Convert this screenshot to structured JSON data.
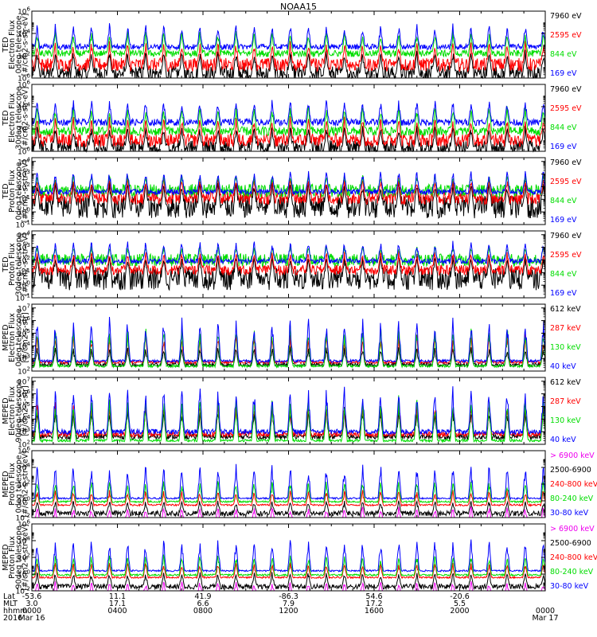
{
  "figure": {
    "title": "NOAA15"
  },
  "chart_data": [
    {
      "type": "line",
      "ylabel": [
        "TED",
        "Electron Flux",
        "0deg telescope",
        "[#/cm2-s-str-eV]"
      ],
      "yticks": [
        "10^0",
        "10^2",
        "10^4",
        "10^6"
      ],
      "ylim_exp": [
        0,
        6
      ],
      "log_y": true,
      "series": [
        {
          "name": "7960 eV",
          "color": "#000000",
          "base": 0.4,
          "jitter": 0.7,
          "spike": 2.6
        },
        {
          "name": "2595 eV",
          "color": "#ff0000",
          "base": 1.2,
          "jitter": 0.6,
          "spike": 3.4
        },
        {
          "name": "844 eV",
          "color": "#00dd00",
          "base": 2.2,
          "jitter": 0.3,
          "spike": 4.4
        },
        {
          "name": "169 eV",
          "color": "#0000ff",
          "base": 2.8,
          "jitter": 0.25,
          "spike": 5.0
        }
      ]
    },
    {
      "type": "line",
      "ylabel": [
        "TED",
        "Electron Flux",
        "30deg telescope",
        "[#/cm2-s-str-eV]"
      ],
      "yticks": [
        "10^0",
        "10^2",
        "10^4",
        "10^6"
      ],
      "ylim_exp": [
        0,
        6
      ],
      "log_y": true,
      "series": [
        {
          "name": "7960 eV",
          "color": "#000000",
          "base": 0.3,
          "jitter": 0.7,
          "spike": 2.4
        },
        {
          "name": "2595 eV",
          "color": "#ff0000",
          "base": 1.0,
          "jitter": 0.6,
          "spike": 3.2
        },
        {
          "name": "844 eV",
          "color": "#00dd00",
          "base": 1.8,
          "jitter": 0.4,
          "spike": 4.2
        },
        {
          "name": "169 eV",
          "color": "#0000ff",
          "base": 2.6,
          "jitter": 0.3,
          "spike": 4.8
        }
      ]
    },
    {
      "type": "line",
      "ylabel": [
        "TED",
        "Proton Flux",
        "0deg telescope",
        "[#/cm2-s-str-eV]"
      ],
      "yticks": [
        "10^-1",
        "10^0",
        "10^1",
        "10^2",
        "10^3",
        "10^4"
      ],
      "ylim_exp": [
        -1,
        4.3
      ],
      "log_y": true,
      "series": [
        {
          "name": "7960 eV",
          "color": "#000000",
          "base": 0.4,
          "jitter": 0.9,
          "spike": 2.6
        },
        {
          "name": "2595 eV",
          "color": "#ff0000",
          "base": 1.1,
          "jitter": 0.5,
          "spike": 2.8
        },
        {
          "name": "844 eV",
          "color": "#00dd00",
          "base": 1.7,
          "jitter": 0.5,
          "spike": 3.0
        },
        {
          "name": "169 eV",
          "color": "#0000ff",
          "base": 1.6,
          "jitter": 0.2,
          "spike": 3.4
        }
      ]
    },
    {
      "type": "line",
      "ylabel": [
        "TED",
        "Proton Flux",
        "30deg telescope",
        "[#/cm2-s-str-eV]"
      ],
      "yticks": [
        "10^-1",
        "10^0",
        "10^1",
        "10^2",
        "10^3",
        "10^4"
      ],
      "ylim_exp": [
        -1,
        4.3
      ],
      "log_y": true,
      "series": [
        {
          "name": "7960 eV",
          "color": "#000000",
          "base": 0.5,
          "jitter": 0.9,
          "spike": 2.6
        },
        {
          "name": "2595 eV",
          "color": "#ff0000",
          "base": 1.2,
          "jitter": 0.4,
          "spike": 2.8
        },
        {
          "name": "844 eV",
          "color": "#00dd00",
          "base": 2.0,
          "jitter": 0.5,
          "spike": 3.2
        },
        {
          "name": "169 eV",
          "color": "#0000ff",
          "base": 1.9,
          "jitter": 0.2,
          "spike": 3.6
        }
      ]
    },
    {
      "type": "line",
      "ylabel": [
        "MEPED",
        "Electron Flux",
        "0deg telescope",
        "[#/cm2-s-str]"
      ],
      "yticks": [
        "10^2",
        "10^3",
        "10^4",
        "10^5",
        "10^6",
        "10^7"
      ],
      "ylim_exp": [
        2,
        7.3
      ],
      "log_y": true,
      "series": [
        {
          "name": "612 keV",
          "color": "#000000",
          "base": 2.5,
          "jitter": 0.15,
          "spike": 4.0
        },
        {
          "name": "287 keV",
          "color": "#ff0000",
          "base": 2.7,
          "jitter": 0.1,
          "spike": 5.0
        },
        {
          "name": "130 keV",
          "color": "#00dd00",
          "base": 2.4,
          "jitter": 0.1,
          "spike": 5.8
        },
        {
          "name": "40 keV",
          "color": "#0000ff",
          "base": 2.8,
          "jitter": 0.1,
          "spike": 6.4
        }
      ]
    },
    {
      "type": "line",
      "ylabel": [
        "MEPED",
        "Electron Flux",
        "90deg telescope",
        "[#/cm2-s-str]"
      ],
      "yticks": [
        "10^2",
        "10^3",
        "10^4",
        "10^5",
        "10^6",
        "10^7"
      ],
      "ylim_exp": [
        2,
        7.3
      ],
      "log_y": true,
      "series": [
        {
          "name": "612 keV",
          "color": "#000000",
          "base": 2.6,
          "jitter": 0.2,
          "spike": 5.0
        },
        {
          "name": "287 keV",
          "color": "#ff0000",
          "base": 2.8,
          "jitter": 0.2,
          "spike": 5.4
        },
        {
          "name": "130 keV",
          "color": "#00dd00",
          "base": 2.3,
          "jitter": 0.1,
          "spike": 6.0
        },
        {
          "name": "40 keV",
          "color": "#0000ff",
          "base": 3.0,
          "jitter": 0.2,
          "spike": 6.8
        }
      ]
    },
    {
      "type": "line",
      "ylabel": [
        "MEPED",
        "Proton Flux",
        "0deg telescope",
        "[#/cm2-s-str-keV]"
      ],
      "yticks": [
        "10^-2",
        "10^0",
        "10^2",
        "10^4",
        "10^6"
      ],
      "ylim_exp": [
        -2,
        6
      ],
      "log_y": true,
      "series": [
        {
          "name": "> 6900 keV",
          "color": "#ee00ee",
          "base": -2.5,
          "jitter": 0.3,
          "spike": -0.6
        },
        {
          "name": "2500-6900",
          "color": "#000000",
          "base": -1.5,
          "jitter": 0.3,
          "spike": 0.2
        },
        {
          "name": "240-800 keV",
          "color": "#ff0000",
          "base": -0.5,
          "jitter": 0.1,
          "spike": 1.4
        },
        {
          "name": "80-240 keV",
          "color": "#00dd00",
          "base": -0.1,
          "jitter": 0.1,
          "spike": 2.6
        },
        {
          "name": "30-80 keV",
          "color": "#0000ff",
          "base": 0.3,
          "jitter": 0.1,
          "spike": 4.6
        }
      ]
    },
    {
      "type": "line",
      "ylabel": [
        "MEPED",
        "Proton Flux",
        "90deg telescope",
        "[#/cm2-s-str-keV]"
      ],
      "yticks": [
        "10^-2",
        "10^0",
        "10^2",
        "10^4",
        "10^6"
      ],
      "ylim_exp": [
        -2,
        6
      ],
      "log_y": true,
      "series": [
        {
          "name": "> 6900 keV",
          "color": "#ee00ee",
          "base": -2.5,
          "jitter": 0.3,
          "spike": -0.8
        },
        {
          "name": "2500-6900",
          "color": "#000000",
          "base": -1.5,
          "jitter": 0.3,
          "spike": 0.4
        },
        {
          "name": "240-800 keV",
          "color": "#ff0000",
          "base": -0.4,
          "jitter": 0.1,
          "spike": 1.5
        },
        {
          "name": "80-240 keV",
          "color": "#00dd00",
          "base": -0.1,
          "jitter": 0.1,
          "spike": 2.5
        },
        {
          "name": "30-80 keV",
          "color": "#0000ff",
          "base": 0.4,
          "jitter": 0.1,
          "spike": 4.4
        }
      ]
    }
  ],
  "x_axis": {
    "row_labels": [
      "Lat",
      "MLT",
      "hhmm",
      "2016"
    ],
    "ticks": [
      {
        "lat": "-53.6",
        "mlt": "3.0",
        "hhmm": "0000",
        "date": "Mar 16"
      },
      {
        "lat": "11.1",
        "mlt": "17.1",
        "hhmm": "0400",
        "date": ""
      },
      {
        "lat": "41.9",
        "mlt": "6.6",
        "hhmm": "0800",
        "date": ""
      },
      {
        "lat": "-86.3",
        "mlt": "7.9",
        "hhmm": "1200",
        "date": ""
      },
      {
        "lat": "54.6",
        "mlt": "17.2",
        "hhmm": "1600",
        "date": ""
      },
      {
        "lat": "-20.6",
        "mlt": "5.5",
        "hhmm": "2000",
        "date": ""
      },
      {
        "lat": "",
        "mlt": "",
        "hhmm": "0000",
        "date": "Mar 17"
      }
    ],
    "range_hours": [
      0,
      24
    ]
  }
}
